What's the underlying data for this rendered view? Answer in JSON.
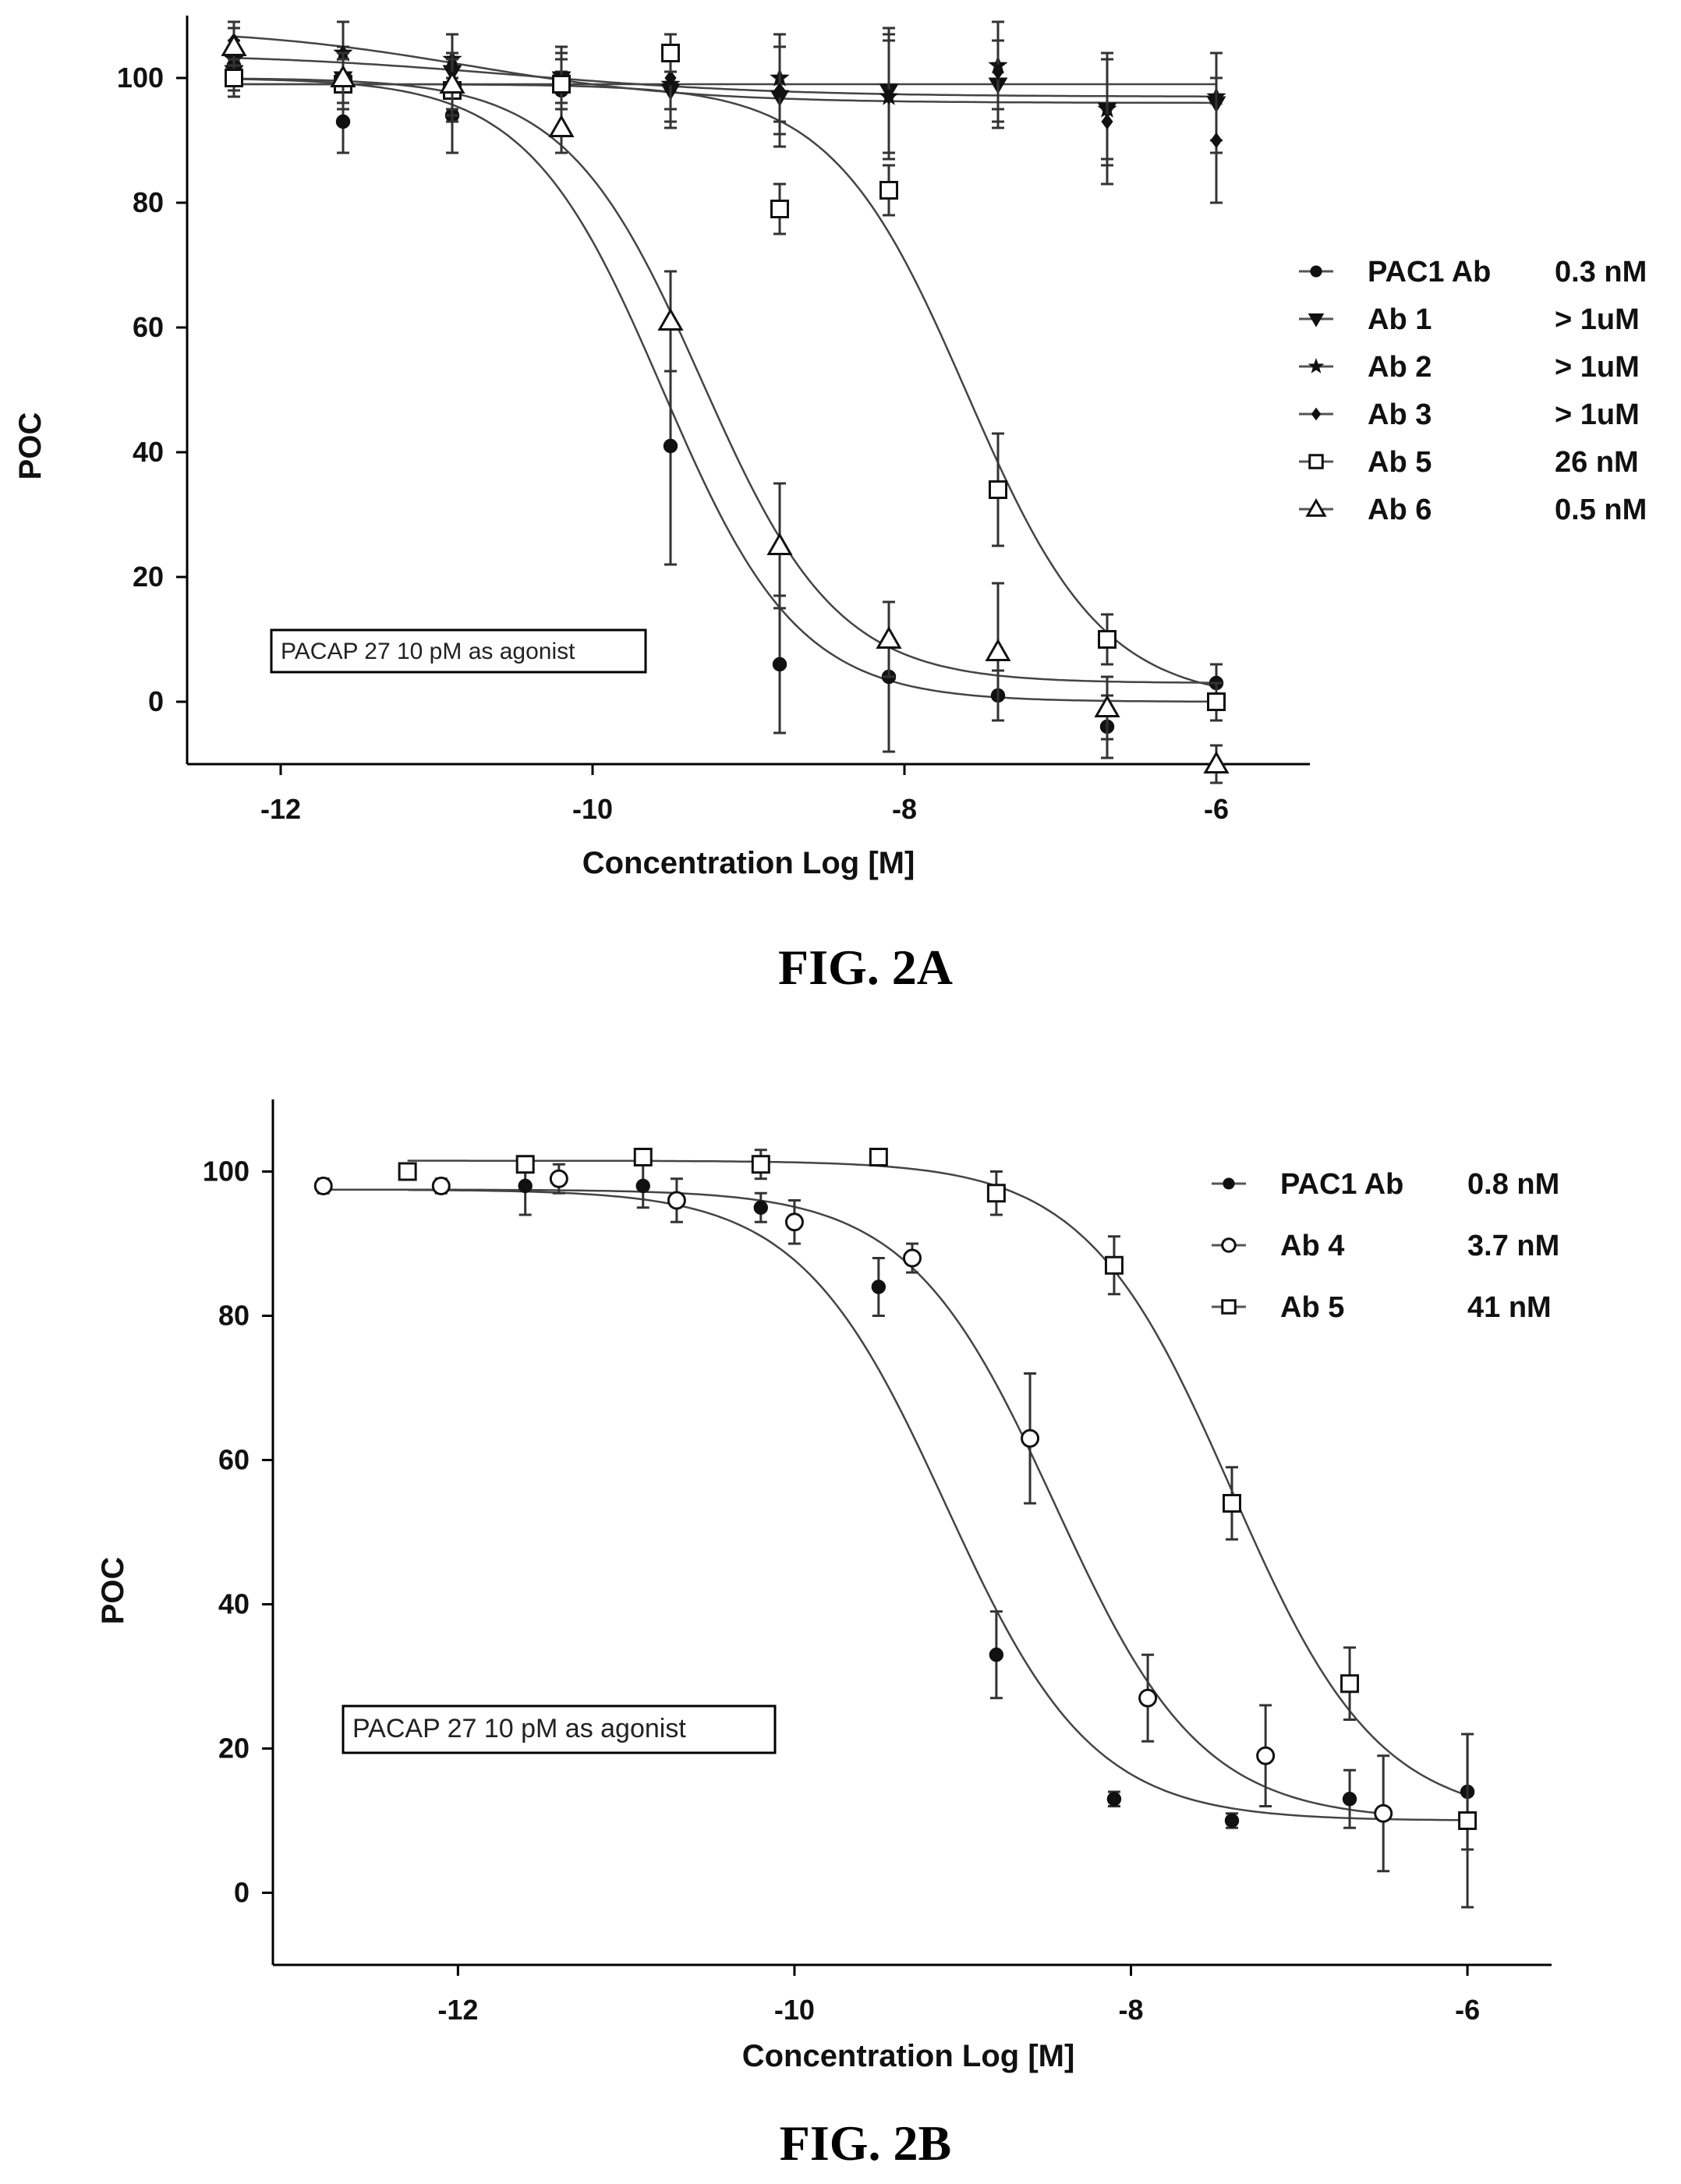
{
  "chart_data": [
    {
      "type": "scatter",
      "figure_label": "FIG. 2A",
      "xlabel": "Concentration Log [M]",
      "ylabel": "POC",
      "xlim": [
        -12.6,
        -5.4
      ],
      "ylim": [
        -10,
        110
      ],
      "xticks": [
        -12,
        -10,
        -8,
        -6
      ],
      "yticks": [
        0,
        20,
        40,
        60,
        80,
        100
      ],
      "grid": false,
      "legend_position": "right",
      "annotation": "PACAP 27 10 pM as agonist",
      "series": [
        {
          "name": "PAC1 Ab",
          "ic50_label": "0.3 nM",
          "marker": "filled-circle",
          "fit": {
            "top": 100,
            "bottom": 0,
            "logIC50": -9.55,
            "hill": 1.0
          },
          "x": [
            -12.3,
            -11.6,
            -10.9,
            -10.2,
            -9.5,
            -8.8,
            -8.1,
            -7.4,
            -6.7,
            -6.0
          ],
          "y": [
            102,
            93,
            94,
            98,
            41,
            6,
            4,
            1,
            -4,
            3
          ],
          "err": [
            3,
            5,
            6,
            3,
            19,
            11,
            12,
            4,
            5,
            3
          ]
        },
        {
          "name": "Ab 1",
          "marker": "down-triangle",
          "ic50_label": "> 1uM",
          "fit": {
            "top": 99,
            "bottom": 99,
            "logIC50": -8,
            "hill": 1.0
          },
          "x": [
            -12.3,
            -11.6,
            -10.9,
            -10.2,
            -9.5,
            -8.8,
            -8.1,
            -7.4,
            -6.7,
            -6.0
          ],
          "y": [
            101,
            100,
            101,
            100,
            98,
            97,
            98,
            99,
            95,
            96
          ],
          "err": [
            3,
            5,
            6,
            4,
            6,
            8,
            10,
            7,
            9,
            8
          ]
        },
        {
          "name": "Ab 2",
          "marker": "star",
          "ic50_label": "> 1uM",
          "fit": {
            "top": 104,
            "bottom": 97,
            "logIC50": -10.5,
            "hill": 0.5
          },
          "x": [
            -12.3,
            -11.6,
            -10.9,
            -10.2,
            -9.5,
            -8.8,
            -8.1,
            -7.4,
            -6.7,
            -6.0
          ],
          "y": [
            103,
            104,
            103,
            100,
            99,
            100,
            97,
            102,
            95,
            97
          ],
          "err": [
            3,
            5,
            4,
            5,
            6,
            7,
            9,
            7,
            8,
            7
          ]
        },
        {
          "name": "Ab 3",
          "marker": "diamond",
          "ic50_label": "> 1uM",
          "fit": {
            "top": 108,
            "bottom": 96,
            "logIC50": -10.8,
            "hill": 0.6
          },
          "x": [
            -12.3,
            -11.6,
            -10.9,
            -10.2,
            -9.5,
            -8.8,
            -8.1,
            -7.4,
            -6.7,
            -6.0
          ],
          "y": [
            106,
            104,
            102,
            99,
            100,
            98,
            97,
            101,
            93,
            90
          ],
          "err": [
            3,
            5,
            5,
            4,
            5,
            7,
            10,
            8,
            10,
            10
          ]
        },
        {
          "name": "Ab 5",
          "marker": "open-square",
          "ic50_label": "26 nM",
          "fit": {
            "top": 99,
            "bottom": 0,
            "logIC50": -7.6,
            "hill": 1.0
          },
          "x": [
            -12.3,
            -11.6,
            -10.9,
            -10.2,
            -9.5,
            -8.8,
            -8.1,
            -7.4,
            -6.7,
            -6.0
          ],
          "y": [
            100,
            99,
            98,
            99,
            104,
            79,
            82,
            34,
            10,
            0
          ],
          "err": [
            3,
            4,
            5,
            4,
            3,
            4,
            4,
            9,
            4,
            3
          ]
        },
        {
          "name": "Ab 6",
          "marker": "open-triangle",
          "ic50_label": "0.5 nM",
          "fit": {
            "top": 100,
            "bottom": 3,
            "logIC50": -9.3,
            "hill": 1.0
          },
          "x": [
            -12.3,
            -11.6,
            -10.9,
            -10.2,
            -9.5,
            -8.8,
            -8.1,
            -7.4,
            -6.7,
            -6.0
          ],
          "y": [
            105,
            100,
            99,
            92,
            61,
            25,
            10,
            8,
            -1,
            -10
          ],
          "err": [
            3,
            4,
            5,
            4,
            8,
            10,
            6,
            11,
            5,
            3
          ]
        }
      ]
    },
    {
      "type": "scatter",
      "figure_label": "FIG. 2B",
      "xlabel": "Concentration Log [M]",
      "ylabel": "POC",
      "xlim": [
        -13.1,
        -5.5
      ],
      "ylim": [
        -10,
        110
      ],
      "xticks": [
        -12,
        -10,
        -8,
        -6
      ],
      "yticks": [
        0,
        20,
        40,
        60,
        80,
        100
      ],
      "grid": false,
      "legend_position": "top-right",
      "annotation": "PACAP 27 10 pM as agonist",
      "series": [
        {
          "name": "PAC1 Ab",
          "ic50_label": "0.8 nM",
          "marker": "filled-circle",
          "fit": {
            "top": 97.5,
            "bottom": 10,
            "logIC50": -9.1,
            "hill": 1.0
          },
          "x": [
            -12.3,
            -11.6,
            -10.9,
            -10.2,
            -9.5,
            -8.8,
            -8.1,
            -7.4,
            -6.7,
            -6.0
          ],
          "y": [
            100,
            98,
            98,
            95,
            84,
            33,
            13,
            10,
            13,
            14
          ],
          "err": [
            1,
            4,
            3,
            2,
            4,
            6,
            1,
            1,
            4,
            8
          ]
        },
        {
          "name": "Ab 4",
          "marker": "open-circle",
          "ic50_label": "3.7 nM",
          "fit": {
            "top": 97.5,
            "bottom": 10,
            "logIC50": -8.45,
            "hill": 1.0
          },
          "x": [
            -12.8,
            -12.1,
            -11.4,
            -10.7,
            -10.0,
            -9.3,
            -8.6,
            -7.9,
            -7.2,
            -6.5
          ],
          "y": [
            98,
            98,
            99,
            96,
            93,
            88,
            63,
            27,
            19,
            11
          ],
          "err": [
            1,
            1,
            2,
            3,
            3,
            2,
            9,
            6,
            7,
            8
          ]
        },
        {
          "name": "Ab 5",
          "marker": "open-square",
          "ic50_label": "41 nM",
          "fit": {
            "top": 101.5,
            "bottom": 10,
            "logIC50": -7.4,
            "hill": 1.0
          },
          "x": [
            -12.3,
            -11.6,
            -10.9,
            -10.2,
            -9.5,
            -8.8,
            -8.1,
            -7.4,
            -6.7,
            -6.0
          ],
          "y": [
            100,
            101,
            102,
            101,
            102,
            97,
            87,
            54,
            29,
            10
          ],
          "err": [
            1,
            1,
            1,
            2,
            1,
            3,
            4,
            5,
            5,
            12
          ]
        }
      ]
    }
  ]
}
